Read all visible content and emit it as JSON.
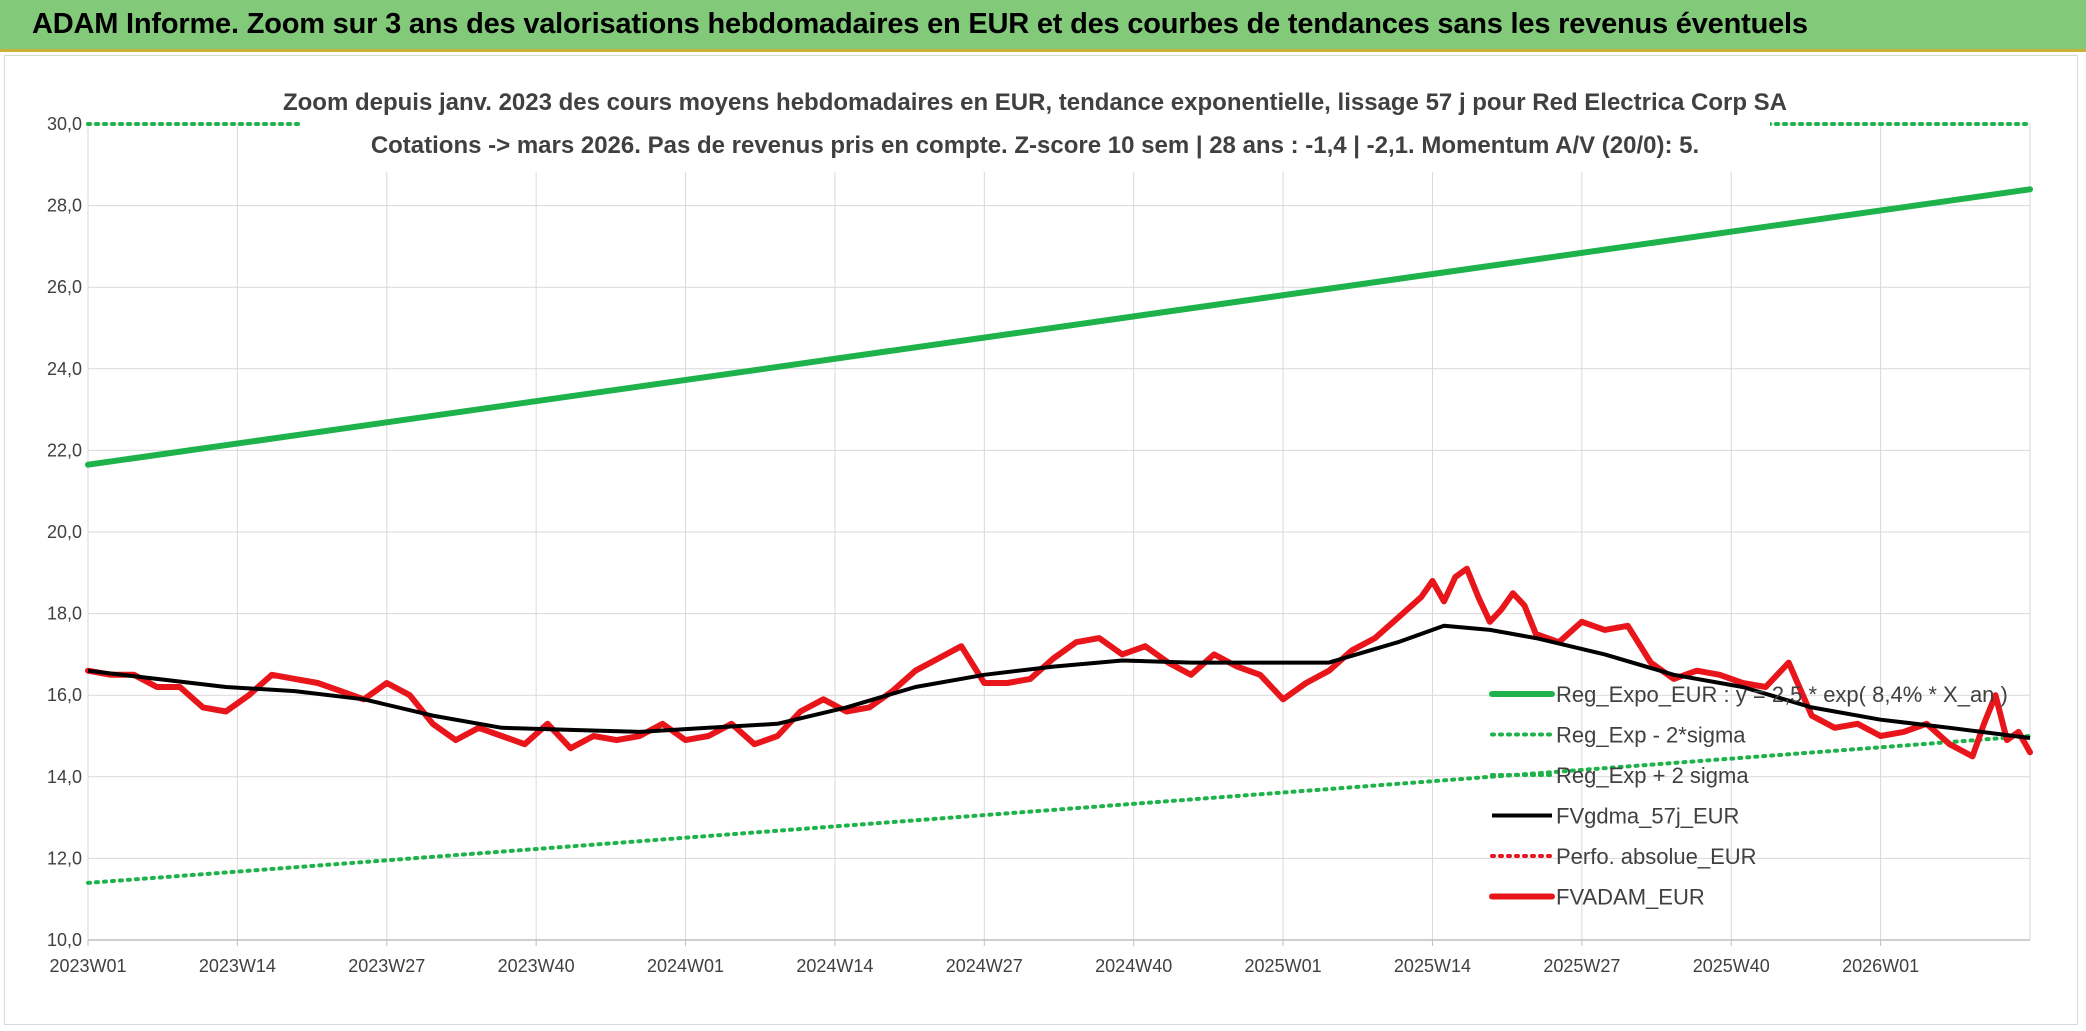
{
  "header": {
    "title": "ADAM Informe. Zoom sur 3 ans des valorisations hebdomadaires en EUR et des courbes de tendances sans les revenus éventuels"
  },
  "chart_data": {
    "type": "line",
    "subtitle_lines": [
      "Zoom depuis janv. 2023 des cours moyens hebdomadaires en EUR, tendance exponentielle, lissage 57 j pour Red Electrica Corp SA",
      "Cotations -> mars 2026. Pas de revenus pris en compte. Z-score 10 sem | 28 ans : -1,4 | -2,1. Momentum A/V (20/0): 5."
    ],
    "x_tick_labels": [
      "2023W01",
      "2023W14",
      "2023W27",
      "2023W40",
      "2024W01",
      "2024W14",
      "2024W27",
      "2024W40",
      "2025W01",
      "2025W14",
      "2025W27",
      "2025W40",
      "2026W01"
    ],
    "x_tick_index": [
      0,
      13,
      26,
      39,
      52,
      65,
      78,
      91,
      104,
      117,
      130,
      143,
      156
    ],
    "x_range": [
      0,
      169
    ],
    "ylim": [
      10,
      30
    ],
    "y_ticks": [
      "10,0",
      "12,0",
      "14,0",
      "16,0",
      "18,0",
      "20,0",
      "22,0",
      "24,0",
      "26,0",
      "28,0",
      "30,0"
    ],
    "y_tick_values": [
      10,
      12,
      14,
      16,
      18,
      20,
      22,
      24,
      26,
      28,
      30
    ],
    "grid": true,
    "legend_position": "right",
    "series": [
      {
        "name": "Reg_Expo_EUR : y = 2,5 * exp( 8,4% * X_an )",
        "color": "#1db34a",
        "style": "solid-thick",
        "x": [
          0,
          169
        ],
        "values": [
          21.65,
          28.4
        ]
      },
      {
        "name": "Reg_Exp - 2*sigma",
        "color": "#1db34a",
        "style": "dotted",
        "x": [
          0,
          169
        ],
        "values": [
          11.4,
          15.0
        ]
      },
      {
        "name": "Reg_Exp + 2 sigma",
        "color": "#1db34a",
        "style": "dotted",
        "x": [
          0,
          169
        ],
        "values": [
          30.0,
          30.0
        ]
      },
      {
        "name": "FVgdma_57j_EUR",
        "color": "#000000",
        "style": "solid",
        "x": [
          0,
          6,
          12,
          18,
          24,
          30,
          36,
          42,
          48,
          54,
          60,
          66,
          72,
          78,
          84,
          90,
          96,
          102,
          108,
          114,
          118,
          122,
          126,
          132,
          138,
          144,
          150,
          156,
          162,
          169
        ],
        "values": [
          16.6,
          16.4,
          16.2,
          16.1,
          15.9,
          15.5,
          15.2,
          15.15,
          15.1,
          15.2,
          15.3,
          15.7,
          16.2,
          16.5,
          16.7,
          16.85,
          16.8,
          16.8,
          16.8,
          17.3,
          17.7,
          17.6,
          17.4,
          17.0,
          16.5,
          16.2,
          15.7,
          15.4,
          15.2,
          14.95
        ]
      },
      {
        "name": "Perfo. absolue_EUR",
        "color": "#e8161b",
        "style": "dotted",
        "x": [],
        "values": []
      },
      {
        "name": "FVADAM_EUR",
        "color": "#e8161b",
        "style": "solid-thick",
        "x": [
          0,
          2,
          4,
          6,
          8,
          10,
          12,
          14,
          16,
          18,
          20,
          22,
          24,
          26,
          28,
          30,
          32,
          34,
          36,
          38,
          40,
          42,
          44,
          46,
          48,
          50,
          52,
          54,
          56,
          58,
          60,
          62,
          64,
          66,
          68,
          70,
          72,
          74,
          76,
          78,
          80,
          82,
          84,
          86,
          88,
          90,
          92,
          94,
          96,
          98,
          100,
          102,
          104,
          106,
          108,
          110,
          112,
          114,
          116,
          117,
          118,
          119,
          120,
          121,
          122,
          123,
          124,
          125,
          126,
          128,
          130,
          132,
          134,
          136,
          138,
          140,
          142,
          144,
          146,
          148,
          150,
          152,
          154,
          156,
          158,
          160,
          162,
          164,
          165,
          166,
          167,
          168,
          169
        ],
        "values": [
          16.6,
          16.5,
          16.5,
          16.2,
          16.2,
          15.7,
          15.6,
          16.0,
          16.5,
          16.4,
          16.3,
          16.1,
          15.9,
          16.3,
          16.0,
          15.3,
          14.9,
          15.2,
          15.0,
          14.8,
          15.3,
          14.7,
          15.0,
          14.9,
          15.0,
          15.3,
          14.9,
          15.0,
          15.3,
          14.8,
          15.0,
          15.6,
          15.9,
          15.6,
          15.7,
          16.1,
          16.6,
          16.9,
          17.2,
          16.3,
          16.3,
          16.4,
          16.9,
          17.3,
          17.4,
          17.0,
          17.2,
          16.8,
          16.5,
          17.0,
          16.7,
          16.5,
          15.9,
          16.3,
          16.6,
          17.1,
          17.4,
          17.9,
          18.4,
          18.8,
          18.3,
          18.9,
          19.1,
          18.4,
          17.8,
          18.1,
          18.5,
          18.2,
          17.5,
          17.3,
          17.8,
          17.6,
          17.7,
          16.8,
          16.4,
          16.6,
          16.5,
          16.3,
          16.2,
          16.8,
          15.5,
          15.2,
          15.3,
          15.0,
          15.1,
          15.3,
          14.8,
          14.5,
          15.3,
          16.0,
          14.9,
          15.1,
          14.6
        ]
      }
    ]
  }
}
